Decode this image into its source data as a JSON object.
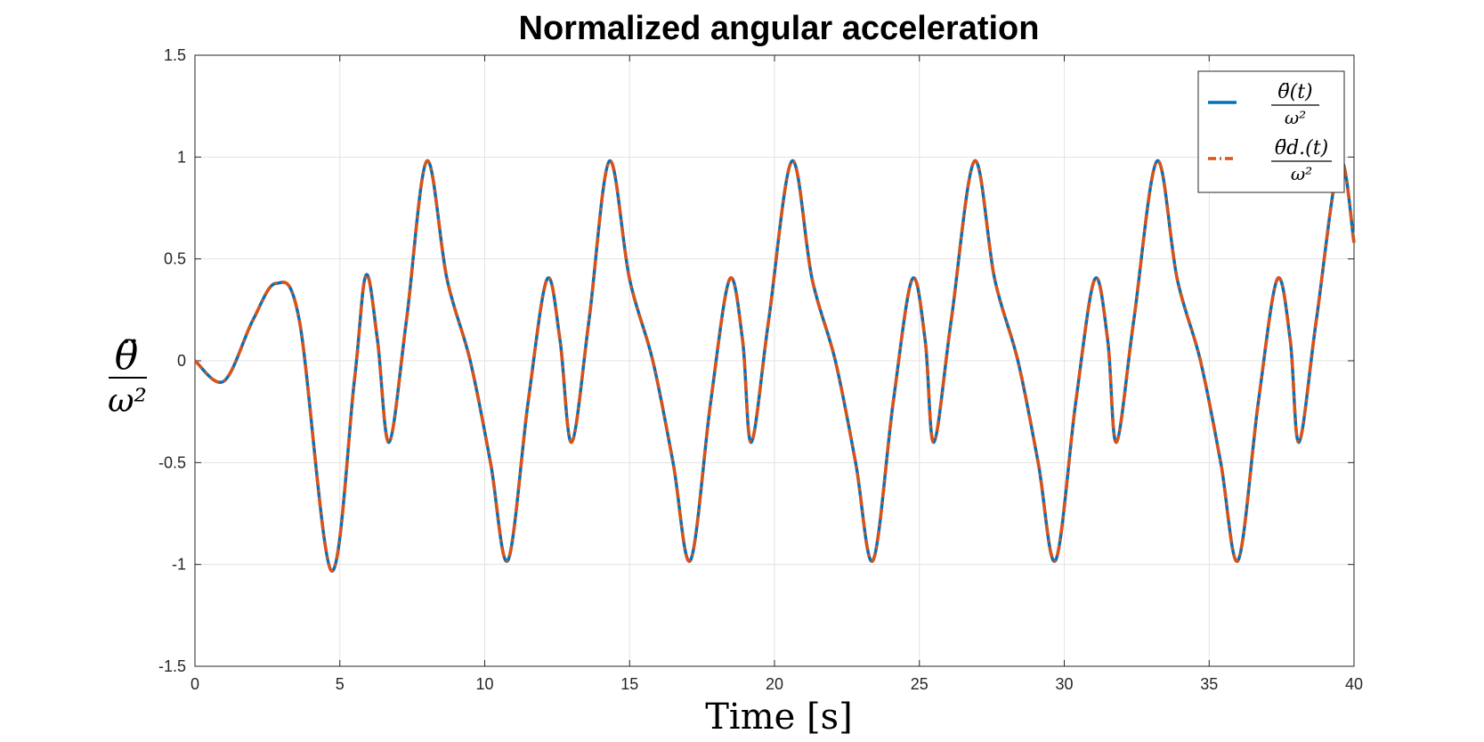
{
  "chart_data": {
    "type": "line",
    "title": "Normalized angular acceleration",
    "xlabel": "Time [s]",
    "ylabel": {
      "numerator": "θ̈",
      "denominator": "ω²"
    },
    "xlim": [
      0,
      40
    ],
    "ylim": [
      -1.5,
      1.5
    ],
    "xticks": [
      "0",
      "5",
      "10",
      "15",
      "20",
      "25",
      "30",
      "35",
      "40"
    ],
    "yticks": [
      "-1.5",
      "-1",
      "-0.5",
      "0",
      "0.5",
      "1",
      "1.5"
    ],
    "grid": true,
    "legend_position": "top-right",
    "x": [
      0,
      1,
      2,
      2.8,
      3.6,
      4.7,
      5.5,
      5.9,
      6.3,
      6.7,
      7.3,
      8.0,
      8.7,
      9.5,
      10.2,
      10.8,
      11.5,
      12.15,
      12.6,
      13.0,
      13.6,
      14.3,
      15.0,
      15.8,
      16.5,
      17.1,
      17.8,
      18.45,
      18.9,
      19.2,
      19.8,
      20.6,
      21.3,
      22.1,
      22.8,
      23.4,
      24.1,
      24.75,
      25.2,
      25.5,
      26.1,
      26.9,
      27.6,
      28.4,
      29.1,
      29.7,
      30.4,
      31.05,
      31.5,
      31.8,
      32.4,
      33.2,
      33.9,
      34.7,
      35.4,
      36.0,
      36.7,
      37.35,
      37.8,
      38.1,
      38.7,
      39.5,
      40.0
    ],
    "series": [
      {
        "name": "θ̈(t)/ω²",
        "color": "#0072BD",
        "style": "solid",
        "y": [
          0,
          -0.1,
          0.2,
          0.38,
          0.2,
          -1.03,
          -0.1,
          0.42,
          0.1,
          -0.4,
          0.2,
          0.98,
          0.4,
          0.0,
          -0.5,
          -0.98,
          -0.2,
          0.4,
          0.1,
          -0.4,
          0.2,
          0.98,
          0.4,
          0.0,
          -0.5,
          -0.98,
          -0.2,
          0.4,
          0.1,
          -0.4,
          0.2,
          0.98,
          0.4,
          0.0,
          -0.5,
          -0.98,
          -0.2,
          0.4,
          0.1,
          -0.4,
          0.2,
          0.98,
          0.4,
          0.0,
          -0.5,
          -0.98,
          -0.2,
          0.4,
          0.1,
          -0.4,
          0.2,
          0.98,
          0.4,
          0.0,
          -0.5,
          -0.98,
          -0.2,
          0.4,
          0.1,
          -0.4,
          0.2,
          0.98,
          0.58
        ]
      },
      {
        "name": "θ̈d.(t)/ω²",
        "color": "#D95319",
        "style": "dashdot",
        "y": [
          0,
          -0.1,
          0.2,
          0.38,
          0.2,
          -1.03,
          -0.1,
          0.42,
          0.1,
          -0.4,
          0.2,
          0.98,
          0.4,
          0.0,
          -0.5,
          -0.98,
          -0.2,
          0.4,
          0.1,
          -0.4,
          0.2,
          0.98,
          0.4,
          0.0,
          -0.5,
          -0.98,
          -0.2,
          0.4,
          0.1,
          -0.4,
          0.2,
          0.98,
          0.4,
          0.0,
          -0.5,
          -0.98,
          -0.2,
          0.4,
          0.1,
          -0.4,
          0.2,
          0.98,
          0.4,
          0.0,
          -0.5,
          -0.98,
          -0.2,
          0.4,
          0.1,
          -0.4,
          0.2,
          0.98,
          0.4,
          0.0,
          -0.5,
          -0.98,
          -0.2,
          0.4,
          0.1,
          -0.4,
          0.2,
          0.98,
          0.58
        ]
      }
    ],
    "legend": [
      {
        "numerator": "θ̈(t)",
        "denominator": "ω²"
      },
      {
        "numerator": "θ̈d.(t)",
        "denominator": "ω²"
      }
    ]
  }
}
